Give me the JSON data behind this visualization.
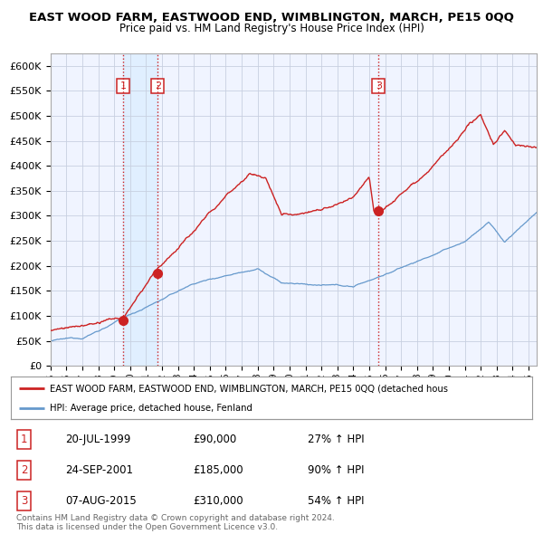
{
  "title": "EAST WOOD FARM, EASTWOOD END, WIMBLINGTON, MARCH, PE15 0QQ",
  "subtitle": "Price paid vs. HM Land Registry's House Price Index (HPI)",
  "ylim": [
    0,
    625000
  ],
  "yticks": [
    0,
    50000,
    100000,
    150000,
    200000,
    250000,
    300000,
    350000,
    400000,
    450000,
    500000,
    550000,
    600000
  ],
  "xlim_start": 1995.0,
  "xlim_end": 2025.5,
  "sale_dates": [
    1999.55,
    2001.73,
    2015.59
  ],
  "sale_prices": [
    90000,
    185000,
    310000
  ],
  "sale_labels": [
    "1",
    "2",
    "3"
  ],
  "vline_color": "#cc2222",
  "red_line_color": "#cc2222",
  "blue_line_color": "#6699cc",
  "shade_color": "#ddeeff",
  "legend_red_label": "EAST WOOD FARM, EASTWOOD END, WIMBLINGTON, MARCH, PE15 0QQ (detached hous",
  "legend_blue_label": "HPI: Average price, detached house, Fenland",
  "table_entries": [
    {
      "num": "1",
      "date": "20-JUL-1999",
      "price": "£90,000",
      "change": "27% ↑ HPI"
    },
    {
      "num": "2",
      "date": "24-SEP-2001",
      "price": "£185,000",
      "change": "90% ↑ HPI"
    },
    {
      "num": "3",
      "date": "07-AUG-2015",
      "price": "£310,000",
      "change": "54% ↑ HPI"
    }
  ],
  "footer": "Contains HM Land Registry data © Crown copyright and database right 2024.\nThis data is licensed under the Open Government Licence v3.0.",
  "bg_color": "#ffffff",
  "plot_bg_color": "#f0f4ff",
  "grid_color": "#c8d0e0"
}
